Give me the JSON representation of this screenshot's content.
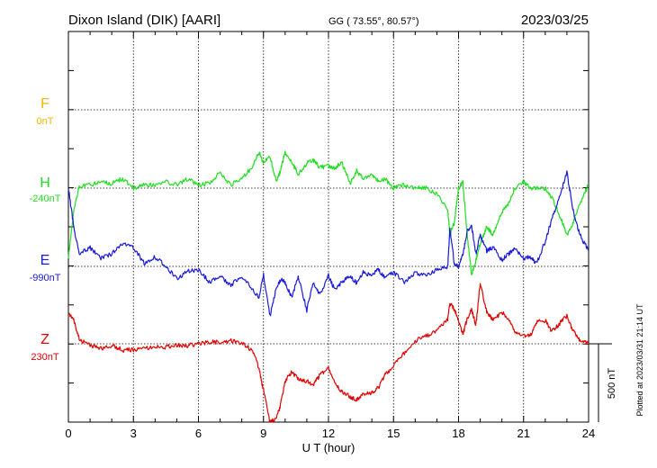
{
  "header": {
    "station": "Dixon Island (DIK)  [AARI]",
    "coords": "GG ( 73.55°,  80.57°)",
    "date": "2023/03/25"
  },
  "side_note": "Plotted at 2023/03/31 21:14 UT",
  "scale_label": "500 nT",
  "chart_data": {
    "type": "line",
    "xlabel": "U T (hour)",
    "xlim": [
      0,
      24
    ],
    "xticks": [
      "0",
      "3",
      "6",
      "9",
      "12",
      "15",
      "18",
      "21",
      "24"
    ],
    "series": [
      {
        "name": "F",
        "baseline": "0nT",
        "color": "#f5b400",
        "x": [],
        "y": []
      },
      {
        "name": "H",
        "baseline": "-240nT",
        "color": "#22dd22",
        "x": [
          0,
          0.25,
          0.5,
          1,
          1.5,
          2,
          2.5,
          3,
          3.5,
          4,
          4.5,
          5,
          5.5,
          6,
          6.5,
          7,
          7.5,
          8,
          8.5,
          8.8,
          9,
          9.3,
          9.6,
          9.8,
          10,
          10.3,
          10.6,
          11,
          11.3,
          11.6,
          12,
          12.3,
          12.6,
          13,
          13.3,
          13.6,
          14,
          14.3,
          14.6,
          15,
          15.5,
          16,
          16.5,
          17,
          17.5,
          17.6,
          17.8,
          18,
          18.2,
          18.4,
          18.6,
          18.8,
          19,
          19.3,
          19.6,
          20,
          20.3,
          20.6,
          21,
          21.3,
          21.6,
          22,
          22.3,
          22.6,
          23,
          23.3,
          23.6,
          24
        ],
        "y": [
          -440,
          -140,
          10,
          20,
          40,
          30,
          60,
          0,
          20,
          20,
          40,
          20,
          60,
          20,
          30,
          100,
          20,
          60,
          140,
          230,
          160,
          200,
          40,
          120,
          230,
          170,
          90,
          160,
          180,
          130,
          140,
          120,
          170,
          30,
          110,
          60,
          90,
          40,
          60,
          0,
          20,
          0,
          0,
          -40,
          -140,
          -300,
          -220,
          0,
          40,
          -300,
          -550,
          -460,
          -350,
          -250,
          -300,
          -150,
          -100,
          0,
          40,
          0,
          0,
          0,
          -60,
          -150,
          -300,
          -220,
          -100,
          20
        ]
      },
      {
        "name": "E",
        "baseline": "-990nT",
        "color": "#1a1adb",
        "x": [
          0,
          0.25,
          0.5,
          1,
          1.5,
          2,
          2.5,
          3,
          3.5,
          4,
          4.5,
          5,
          5.5,
          6,
          6.5,
          7,
          7.5,
          8,
          8.5,
          8.8,
          9,
          9.3,
          9.6,
          9.8,
          10,
          10.3,
          10.6,
          11,
          11.3,
          11.6,
          12,
          12.3,
          12.6,
          13,
          13.3,
          13.6,
          14,
          14.3,
          14.6,
          15,
          15.5,
          16,
          16.5,
          17,
          17.5,
          17.6,
          17.8,
          18,
          18.2,
          18.4,
          18.6,
          18.8,
          19,
          19.3,
          19.6,
          20,
          20.3,
          20.6,
          21,
          21.3,
          21.6,
          22,
          22.3,
          22.6,
          23,
          23.3,
          23.6,
          24
        ],
        "y": [
          500,
          250,
          80,
          120,
          50,
          80,
          150,
          120,
          20,
          60,
          0,
          -80,
          -30,
          -20,
          -100,
          -60,
          -120,
          -60,
          -150,
          -200,
          -50,
          -320,
          -130,
          -80,
          -100,
          -200,
          -60,
          -280,
          -100,
          -180,
          -60,
          -150,
          -100,
          -60,
          -110,
          -40,
          -60,
          -20,
          -70,
          -40,
          -100,
          -40,
          -60,
          -20,
          0,
          250,
          20,
          0,
          80,
          220,
          260,
          80,
          200,
          100,
          120,
          40,
          80,
          120,
          50,
          60,
          20,
          160,
          300,
          420,
          600,
          350,
          200,
          100
        ]
      },
      {
        "name": "Z",
        "baseline": "230nT",
        "color": "#e00000",
        "x": [
          0,
          0.25,
          0.5,
          1,
          1.5,
          2,
          2.5,
          3,
          3.5,
          4,
          4.5,
          5,
          5.5,
          6,
          6.5,
          7,
          7.5,
          8,
          8.5,
          8.8,
          9,
          9.3,
          9.6,
          9.8,
          10,
          10.3,
          10.6,
          11,
          11.3,
          11.6,
          12,
          12.3,
          12.6,
          13,
          13.3,
          13.6,
          14,
          14.3,
          14.6,
          15,
          15.5,
          16,
          16.5,
          17,
          17.5,
          17.6,
          17.8,
          18,
          18.2,
          18.4,
          18.6,
          18.8,
          19,
          19.3,
          19.6,
          20,
          20.3,
          20.6,
          21,
          21.3,
          21.6,
          22,
          22.3,
          22.6,
          23,
          23.3,
          23.6,
          24
        ],
        "y": [
          200,
          150,
          30,
          -10,
          -30,
          -10,
          -40,
          -40,
          -30,
          -20,
          -20,
          -10,
          -10,
          0,
          10,
          10,
          20,
          0,
          -40,
          -160,
          -300,
          -500,
          -480,
          -380,
          -240,
          -180,
          -220,
          -240,
          -260,
          -200,
          -160,
          -260,
          -300,
          -340,
          -360,
          -320,
          -310,
          -280,
          -200,
          -140,
          -60,
          20,
          50,
          80,
          160,
          260,
          220,
          150,
          60,
          160,
          220,
          120,
          390,
          200,
          150,
          200,
          160,
          80,
          50,
          50,
          140,
          150,
          80,
          120,
          180,
          80,
          20,
          0
        ]
      }
    ],
    "grid": true,
    "scale_bar_nT": 500
  }
}
